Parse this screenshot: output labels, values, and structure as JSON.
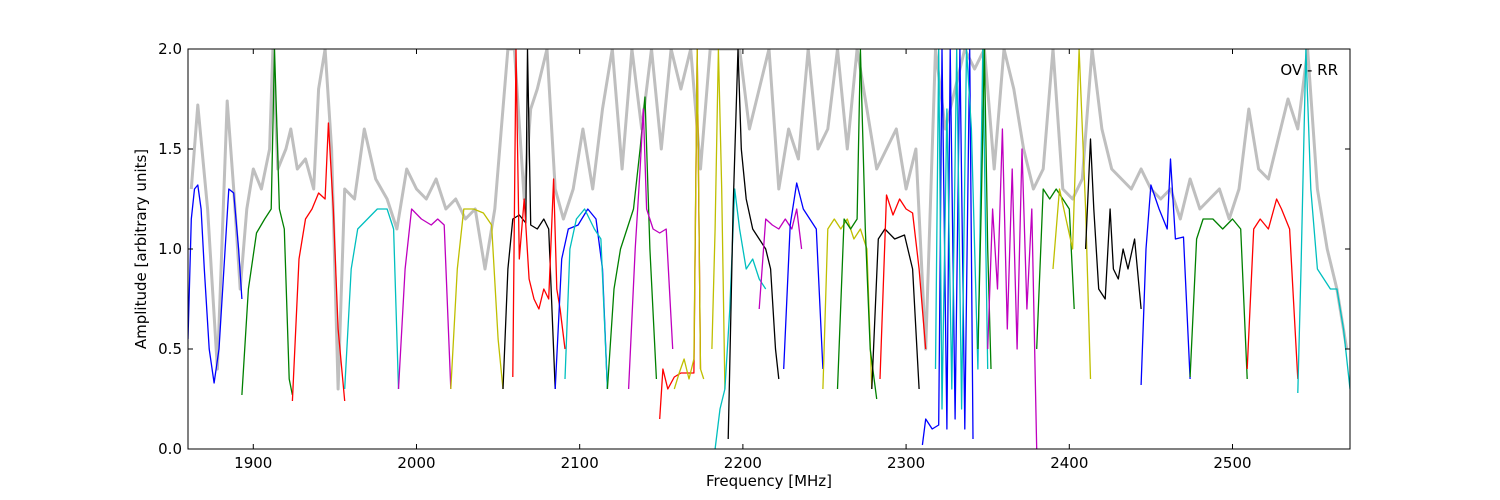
{
  "chart_data": {
    "type": "line",
    "annotation": "OV - RR",
    "xlabel": "Frequency [MHz]",
    "ylabel": "Amplitude [arbitrary units]",
    "xlim": [
      1860,
      2572
    ],
    "ylim": [
      0.0,
      2.0
    ],
    "x_ticks": [
      1900,
      2000,
      2100,
      2200,
      2300,
      2400,
      2500
    ],
    "x_tick_labels": [
      "1900",
      "2000",
      "2100",
      "2200",
      "2300",
      "2400",
      "2500"
    ],
    "y_ticks": [
      0.0,
      0.5,
      1.0,
      1.5,
      2.0
    ],
    "y_tick_labels": [
      "0.0",
      "0.5",
      "1.0",
      "1.5",
      "2.0"
    ],
    "grid": false,
    "background_series": {
      "color": "#bfbfbf",
      "x": [
        1862,
        1866,
        1872,
        1878,
        1884,
        1888,
        1892,
        1896,
        1900,
        1905,
        1910,
        1912,
        1915,
        1920,
        1923,
        1927,
        1932,
        1937,
        1940,
        1944,
        1948,
        1952,
        1956,
        1962,
        1968,
        1975,
        1982,
        1988,
        1994,
        2000,
        2006,
        2012,
        2018,
        2024,
        2030,
        2036,
        2042,
        2048,
        2052,
        2056,
        2060,
        2066,
        2070,
        2074,
        2080,
        2085,
        2090,
        2096,
        2102,
        2108,
        2114,
        2120,
        2126,
        2132,
        2138,
        2144,
        2150,
        2156,
        2162,
        2168,
        2174,
        2180,
        2186,
        2192,
        2198,
        2204,
        2210,
        2216,
        2222,
        2228,
        2234,
        2240,
        2246,
        2252,
        2258,
        2264,
        2270,
        2276,
        2282,
        2288,
        2294,
        2300,
        2306,
        2312,
        2318,
        2324,
        2330,
        2336,
        2342,
        2348,
        2354,
        2360,
        2366,
        2372,
        2378,
        2384,
        2390,
        2396,
        2402,
        2408,
        2414,
        2420,
        2426,
        2432,
        2438,
        2444,
        2450,
        2456,
        2462,
        2468,
        2474,
        2480,
        2486,
        2492,
        2498,
        2504,
        2510,
        2516,
        2522,
        2528,
        2534,
        2540,
        2546,
        2552,
        2558,
        2564,
        2570
      ],
      "y": [
        1.3,
        1.72,
        1.2,
        0.4,
        1.74,
        1.3,
        0.8,
        1.2,
        1.4,
        1.3,
        1.5,
        2.0,
        1.4,
        1.5,
        1.6,
        1.4,
        1.45,
        1.3,
        1.8,
        2.0,
        1.5,
        0.3,
        1.3,
        1.25,
        1.6,
        1.35,
        1.25,
        1.1,
        1.4,
        1.3,
        1.25,
        1.35,
        1.2,
        1.25,
        1.15,
        1.2,
        0.9,
        1.2,
        1.6,
        2.0,
        2.0,
        1.25,
        1.7,
        1.8,
        2.0,
        1.3,
        1.15,
        1.3,
        1.6,
        1.3,
        1.7,
        2.0,
        1.4,
        2.0,
        1.6,
        2.0,
        1.5,
        2.0,
        1.8,
        2.0,
        1.4,
        2.0,
        2.0,
        2.0,
        2.0,
        1.6,
        1.8,
        2.0,
        1.3,
        1.6,
        1.45,
        2.0,
        1.5,
        1.6,
        2.0,
        1.5,
        2.0,
        1.7,
        1.4,
        1.5,
        1.6,
        1.3,
        1.5,
        0.5,
        2.0,
        1.6,
        1.8,
        2.0,
        1.9,
        2.0,
        1.4,
        2.0,
        1.8,
        1.5,
        1.3,
        1.4,
        2.0,
        1.3,
        1.25,
        1.35,
        2.0,
        1.6,
        1.4,
        1.35,
        1.3,
        1.4,
        1.3,
        1.25,
        1.3,
        1.15,
        1.35,
        1.2,
        1.25,
        1.3,
        1.15,
        1.3,
        1.7,
        1.4,
        1.35,
        1.55,
        1.75,
        1.6,
        2.0,
        1.3,
        1.0,
        0.8,
        0.5
      ]
    },
    "series": [
      {
        "color": "#0000ff",
        "x": [
          1860,
          1862,
          1864,
          1866,
          1868,
          1870,
          1873,
          1876,
          1879,
          1882,
          1885,
          1888,
          1891,
          1893
        ],
        "y": [
          0.55,
          1.15,
          1.3,
          1.32,
          1.2,
          0.9,
          0.5,
          0.33,
          0.5,
          0.9,
          1.3,
          1.28,
          1.0,
          0.75
        ]
      },
      {
        "color": "#008000",
        "x": [
          1893,
          1897,
          1902,
          1907,
          1911,
          1913,
          1916,
          1919,
          1922,
          1924
        ],
        "y": [
          0.27,
          0.8,
          1.08,
          1.15,
          1.2,
          2.0,
          1.2,
          1.1,
          0.35,
          0.27
        ]
      },
      {
        "color": "#ff0000",
        "x": [
          1924,
          1928,
          1932,
          1936,
          1940,
          1944,
          1946,
          1949,
          1952,
          1956
        ],
        "y": [
          0.24,
          0.95,
          1.15,
          1.2,
          1.28,
          1.25,
          1.63,
          1.2,
          0.6,
          0.24
        ]
      },
      {
        "color": "#00bfbf",
        "x": [
          1956,
          1960,
          1964,
          1970,
          1976,
          1982,
          1986,
          1989
        ],
        "y": [
          0.3,
          0.9,
          1.1,
          1.15,
          1.2,
          1.2,
          1.1,
          0.3
        ]
      },
      {
        "color": "#bf00bf",
        "x": [
          1989,
          1993,
          1997,
          2003,
          2009,
          2013,
          2017,
          2021
        ],
        "y": [
          0.3,
          0.9,
          1.2,
          1.15,
          1.12,
          1.15,
          1.12,
          0.3
        ]
      },
      {
        "color": "#bfbf00",
        "x": [
          2021,
          2025,
          2029,
          2035,
          2041,
          2046,
          2050,
          2053
        ],
        "y": [
          0.3,
          0.9,
          1.2,
          1.2,
          1.18,
          1.12,
          0.55,
          0.3
        ]
      },
      {
        "color": "#000000",
        "x": [
          2053,
          2056,
          2059,
          2063,
          2067,
          2068,
          2070,
          2074,
          2078,
          2081,
          2085
        ],
        "y": [
          0.3,
          0.9,
          1.15,
          1.17,
          1.13,
          2.0,
          1.12,
          1.1,
          1.15,
          1.1,
          0.3
        ]
      },
      {
        "color": "#ff0000",
        "x": [
          2059,
          2061,
          2063,
          2066,
          2069,
          2072,
          2075,
          2078,
          2081,
          2084,
          2086,
          2088,
          2091
        ],
        "y": [
          0.36,
          2.0,
          0.95,
          1.25,
          0.85,
          0.75,
          0.7,
          0.8,
          0.75,
          1.35,
          0.8,
          0.7,
          0.5
        ]
      },
      {
        "color": "#0000ff",
        "x": [
          2085,
          2089,
          2093,
          2099,
          2105,
          2110,
          2114,
          2117
        ],
        "y": [
          0.3,
          0.95,
          1.1,
          1.12,
          1.2,
          1.15,
          0.9,
          0.3
        ]
      },
      {
        "color": "#00bfbf",
        "x": [
          2091,
          2094,
          2098,
          2103,
          2109,
          2113,
          2117
        ],
        "y": [
          0.35,
          1.0,
          1.15,
          1.2,
          1.1,
          1.05,
          0.3
        ]
      },
      {
        "color": "#008000",
        "x": [
          2117,
          2121,
          2125,
          2129,
          2133,
          2137,
          2140,
          2143,
          2147
        ],
        "y": [
          0.3,
          0.8,
          1.0,
          1.1,
          1.2,
          1.5,
          1.76,
          1.0,
          0.35
        ]
      },
      {
        "color": "#bf00bf",
        "x": [
          2130,
          2134,
          2137,
          2139,
          2141,
          2145,
          2149,
          2153,
          2157
        ],
        "y": [
          0.3,
          1.0,
          1.4,
          1.7,
          1.2,
          1.1,
          1.08,
          1.1,
          0.5
        ]
      },
      {
        "color": "#ff0000",
        "x": [
          2149,
          2151,
          2154,
          2158,
          2162,
          2166,
          2170,
          2172,
          2174
        ],
        "y": [
          0.15,
          0.4,
          0.3,
          0.36,
          0.38,
          0.38,
          0.38,
          2.0,
          0.4
        ]
      },
      {
        "color": "#bfbf00",
        "x": [
          2158,
          2161,
          2164,
          2167,
          2170,
          2172,
          2174,
          2176
        ],
        "y": [
          0.3,
          0.38,
          0.45,
          0.35,
          0.45,
          2.0,
          0.4,
          0.35
        ]
      },
      {
        "color": "#bfbf00",
        "x": [
          2181,
          2183,
          2185,
          2187,
          2189
        ],
        "y": [
          0.5,
          1.1,
          2.0,
          1.3,
          0.3
        ]
      },
      {
        "color": "#00bfbf",
        "x": [
          2183,
          2186,
          2189,
          2192,
          2195,
          2198,
          2202,
          2206,
          2210,
          2214
        ],
        "y": [
          0.0,
          0.2,
          0.3,
          0.7,
          1.3,
          1.1,
          0.9,
          0.95,
          0.85,
          0.8
        ]
      },
      {
        "color": "#000000",
        "x": [
          2191,
          2194,
          2197,
          2199,
          2202,
          2206,
          2210,
          2214,
          2217,
          2220,
          2222
        ],
        "y": [
          0.05,
          1.2,
          2.0,
          1.5,
          1.25,
          1.1,
          1.05,
          1.0,
          0.9,
          0.5,
          0.35
        ]
      },
      {
        "color": "#bf00bf",
        "x": [
          2210,
          2214,
          2218,
          2222,
          2226,
          2230,
          2233,
          2236
        ],
        "y": [
          0.7,
          1.15,
          1.12,
          1.1,
          1.15,
          1.1,
          1.2,
          1.0
        ]
      },
      {
        "color": "#0000ff",
        "x": [
          2225,
          2229,
          2233,
          2237,
          2241,
          2245,
          2249
        ],
        "y": [
          0.4,
          1.12,
          1.33,
          1.2,
          1.15,
          1.1,
          0.4
        ]
      },
      {
        "color": "#bfbf00",
        "x": [
          2249,
          2252,
          2256,
          2260,
          2264,
          2268,
          2272,
          2276,
          2279
        ],
        "y": [
          0.3,
          1.1,
          1.15,
          1.1,
          1.15,
          1.05,
          1.1,
          1.0,
          0.3
        ]
      },
      {
        "color": "#008000",
        "x": [
          2258,
          2262,
          2266,
          2270,
          2272,
          2275,
          2278,
          2282
        ],
        "y": [
          0.3,
          1.15,
          1.1,
          1.15,
          2.0,
          1.1,
          0.5,
          0.25
        ]
      },
      {
        "color": "#000000",
        "x": [
          2279,
          2283,
          2287,
          2293,
          2299,
          2304,
          2308
        ],
        "y": [
          0.3,
          1.05,
          1.1,
          1.05,
          1.07,
          0.9,
          0.3
        ]
      },
      {
        "color": "#ff0000",
        "x": [
          2284,
          2288,
          2292,
          2296,
          2300,
          2304,
          2308,
          2312
        ],
        "y": [
          0.35,
          1.27,
          1.17,
          1.25,
          1.2,
          1.18,
          0.9,
          0.5
        ]
      },
      {
        "color": "#0000ff",
        "x": [
          2310,
          2312,
          2316,
          2320,
          2322,
          2325,
          2327,
          2330,
          2333,
          2336,
          2339,
          2341
        ],
        "y": [
          0.02,
          0.15,
          0.1,
          0.12,
          2.0,
          0.1,
          2.0,
          0.15,
          2.0,
          0.1,
          2.0,
          0.05
        ]
      },
      {
        "color": "#00bfbf",
        "x": [
          2318,
          2320,
          2322,
          2325,
          2328,
          2331,
          2334,
          2337,
          2340,
          2344,
          2347,
          2350
        ],
        "y": [
          0.4,
          2.0,
          0.2,
          1.7,
          0.3,
          2.0,
          0.2,
          2.0,
          1.6,
          0.4,
          2.0,
          0.4
        ]
      },
      {
        "color": "#008000",
        "x": [
          2344,
          2346,
          2348,
          2350,
          2352
        ],
        "y": [
          0.5,
          1.2,
          2.0,
          1.0,
          0.4
        ]
      },
      {
        "color": "#bf00bf",
        "x": [
          2350,
          2353,
          2356,
          2359,
          2362,
          2365,
          2368,
          2371,
          2374,
          2377,
          2380
        ],
        "y": [
          0.5,
          1.2,
          0.8,
          1.6,
          0.6,
          1.4,
          0.5,
          1.5,
          0.7,
          1.2,
          0.0
        ]
      },
      {
        "color": "#008000",
        "x": [
          2380,
          2384,
          2388,
          2392,
          2396,
          2400,
          2403
        ],
        "y": [
          0.5,
          1.3,
          1.25,
          1.3,
          1.25,
          1.2,
          0.7
        ]
      },
      {
        "color": "#bfbf00",
        "x": [
          2390,
          2394,
          2398,
          2402,
          2406,
          2410,
          2413
        ],
        "y": [
          0.9,
          1.3,
          1.15,
          1.0,
          2.0,
          1.2,
          0.35
        ]
      },
      {
        "color": "#000000",
        "x": [
          2410,
          2413,
          2415,
          2418,
          2422,
          2425,
          2427,
          2430,
          2433,
          2436,
          2440,
          2444
        ],
        "y": [
          1.0,
          1.55,
          1.2,
          0.8,
          0.75,
          1.2,
          0.9,
          0.85,
          1.0,
          0.9,
          1.05,
          0.7
        ]
      },
      {
        "color": "#0000ff",
        "x": [
          2444,
          2447,
          2450,
          2455,
          2460,
          2462,
          2465,
          2470,
          2474
        ],
        "y": [
          0.32,
          1.0,
          1.32,
          1.2,
          1.1,
          1.45,
          1.05,
          1.06,
          0.35
        ]
      },
      {
        "color": "#008000",
        "x": [
          2474,
          2478,
          2482,
          2488,
          2494,
          2500,
          2505,
          2509
        ],
        "y": [
          0.36,
          1.05,
          1.15,
          1.15,
          1.1,
          1.15,
          1.1,
          0.35
        ]
      },
      {
        "color": "#ff0000",
        "x": [
          2509,
          2513,
          2517,
          2522,
          2527,
          2530,
          2535,
          2540
        ],
        "y": [
          0.4,
          1.1,
          1.15,
          1.1,
          1.25,
          1.2,
          1.1,
          0.35
        ]
      },
      {
        "color": "#00bfbf",
        "x": [
          2540,
          2542,
          2545,
          2548,
          2552,
          2556,
          2560,
          2564,
          2568,
          2572
        ],
        "y": [
          0.28,
          0.9,
          2.0,
          1.3,
          0.9,
          0.85,
          0.8,
          0.8,
          0.6,
          0.3
        ]
      }
    ]
  }
}
